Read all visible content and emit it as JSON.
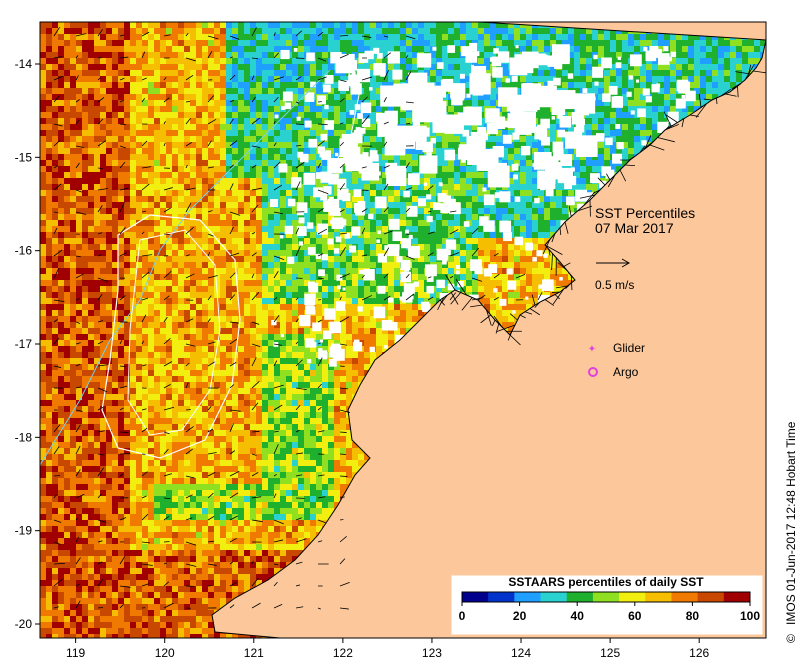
{
  "map": {
    "title": "SST Percentiles",
    "date": "07 Mar 2017",
    "scale_arrow_label": "0.5 m/s",
    "legend_items": [
      {
        "label": "Glider",
        "color": "#e040e0",
        "icon": "star-marker-icon"
      },
      {
        "label": "Argo",
        "color": "#e040e0",
        "icon": "circle-marker-icon"
      }
    ],
    "credit": "IMOS 01-Jun-2017 12:48 Hobart Time",
    "credit_symbol": "©",
    "longitude_ticks": [
      "119",
      "120",
      "121",
      "122",
      "123",
      "124",
      "125",
      "126"
    ],
    "latitude_ticks": [
      "-14",
      "-15",
      "-16",
      "-17",
      "-18",
      "-19",
      "-20"
    ],
    "extent": {
      "lon_min": 118.6,
      "lon_max": 126.75,
      "lat_min": -20.15,
      "lat_max": -13.55
    },
    "land_color": "#fcc89b",
    "colorbar": {
      "title": "SSTAARS percentiles of daily SST",
      "tick_labels": [
        "0",
        "20",
        "40",
        "60",
        "80",
        "100"
      ],
      "colors": [
        "#00008c",
        "#0033cc",
        "#1f9fff",
        "#2ad1d1",
        "#1fb02d",
        "#8fe020",
        "#f2ee10",
        "#f5be00",
        "#f07a00",
        "#c84800",
        "#a00000"
      ]
    }
  }
}
